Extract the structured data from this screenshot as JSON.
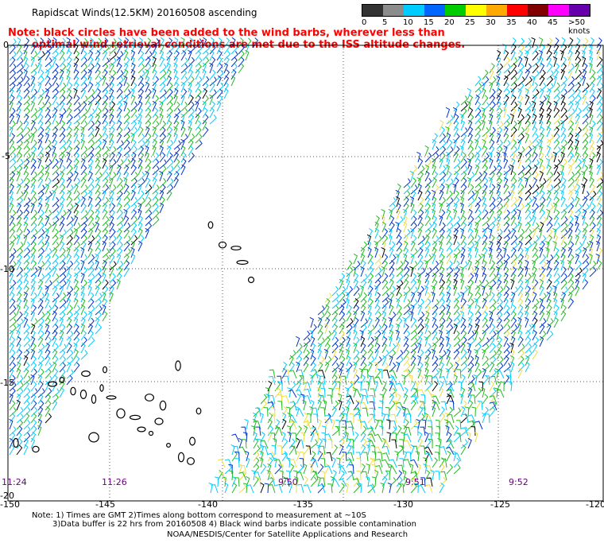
{
  "header": {
    "title": "Rapidscat Winds(12.5KM) 20160508 ascending",
    "note_line1": "Note: black circles have been added to the wind barbs, wherever less than",
    "note_line2": "optimal wind retrieval conditions are met due to the ISS altitude changes."
  },
  "legend": {
    "labels": [
      "0",
      "5",
      "10",
      "15",
      "20",
      "25",
      "30",
      "35",
      "40",
      "45",
      ">50 knots"
    ],
    "colors": [
      "#333333",
      "#8c8c8c",
      "#00ccff",
      "#0066ff",
      "#00cc00",
      "#ffff00",
      "#ffaa00",
      "#ff0000",
      "#800000",
      "#ff00ff",
      "#6600aa"
    ]
  },
  "axes": {
    "lat_labels": [
      "0",
      "-5",
      "-10",
      "-15",
      "-20"
    ],
    "lon_labels": [
      "-150",
      "-145",
      "-140",
      "-135",
      "-130",
      "-125",
      "-120"
    ]
  },
  "pass_times": [
    "11:24",
    "11:26",
    "9:50",
    "9:51",
    "9:52"
  ],
  "footer": {
    "line1": "Note: 1) Times are GMT 2)Times along bottom correspond to measurement at ~10S",
    "line2": "3)Data buffer is 22 hrs from 20160508 4) Black wind barbs indicate possible contamination",
    "credit": "NOAA/NESDIS/Center for Satellite Applications and Research"
  },
  "barb_colors": {
    "cyan": "#00ccff",
    "blue": "#0033cc",
    "green": "#22bb22",
    "yellow": "#eedd44",
    "black": "#000000"
  }
}
